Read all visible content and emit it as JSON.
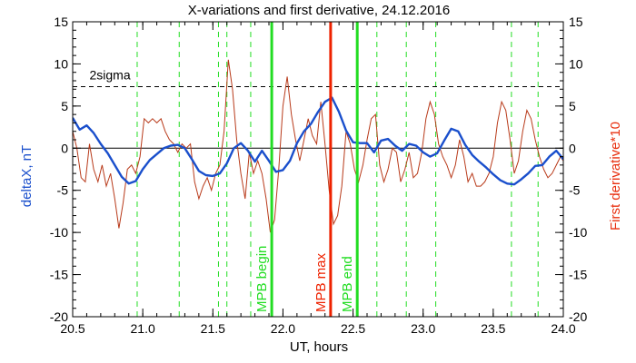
{
  "chart_data": {
    "type": "line",
    "title": "X-variations and first derivative, 24.12.2016",
    "xlabel": "UT, hours",
    "ylabel_left": "deltaX, nT",
    "ylabel_right": "First derivative*10",
    "xlim": [
      20.5,
      24.0
    ],
    "ylim_left": [
      -20,
      15
    ],
    "ylim_right": [
      -20,
      15
    ],
    "x_ticks": [
      "20.5",
      "21.0",
      "21.5",
      "22.0",
      "22.5",
      "23.0",
      "23.5",
      "24.0"
    ],
    "y_ticks": [
      "-20",
      "-15",
      "-10",
      "-5",
      "0",
      "5",
      "10",
      "15"
    ],
    "grid": false,
    "colors": {
      "deltaX": "#1a4fcc",
      "derivative": "#b83a1a",
      "mpb_marker": "#22dd22",
      "mpb_max": "#ee2200",
      "left_axis_label": "#1a4fcc",
      "right_axis_label": "#e83010"
    },
    "sigma_level": 7.3,
    "sigma_label": "2sigma",
    "dashed_verticals": [
      20.96,
      21.26,
      21.54,
      21.6,
      21.77,
      22.67,
      22.88,
      23.09,
      23.63,
      23.82
    ],
    "markers": [
      {
        "x": 21.92,
        "label": "MPB begin",
        "color": "#22dd22"
      },
      {
        "x": 22.34,
        "label": "MPB max",
        "color": "#ee2200"
      },
      {
        "x": 22.53,
        "label": "MPB end",
        "color": "#22dd22"
      }
    ],
    "series": [
      {
        "name": "deltaX",
        "axis": "left",
        "x": [
          20.5,
          20.55,
          20.6,
          20.65,
          20.7,
          20.75,
          20.8,
          20.85,
          20.9,
          20.95,
          21.0,
          21.05,
          21.1,
          21.15,
          21.2,
          21.25,
          21.3,
          21.35,
          21.4,
          21.45,
          21.5,
          21.55,
          21.6,
          21.65,
          21.7,
          21.75,
          21.8,
          21.85,
          21.9,
          21.95,
          22.0,
          22.05,
          22.1,
          22.15,
          22.2,
          22.25,
          22.3,
          22.35,
          22.4,
          22.45,
          22.5,
          22.55,
          22.6,
          22.65,
          22.7,
          22.75,
          22.8,
          22.85,
          22.9,
          22.95,
          23.0,
          23.05,
          23.1,
          23.15,
          23.2,
          23.25,
          23.3,
          23.35,
          23.4,
          23.45,
          23.5,
          23.55,
          23.6,
          23.65,
          23.7,
          23.75,
          23.8,
          23.85,
          23.9,
          23.95,
          24.0
        ],
        "values": [
          3.6,
          2.2,
          2.7,
          1.8,
          0.5,
          -0.6,
          -2.0,
          -3.4,
          -4.2,
          -3.9,
          -2.5,
          -1.4,
          -0.7,
          0.0,
          0.3,
          0.4,
          0.0,
          -1.3,
          -2.7,
          -3.2,
          -3.3,
          -3.0,
          -1.8,
          0.0,
          0.6,
          -0.3,
          -1.6,
          -0.3,
          -1.5,
          -2.8,
          -2.6,
          -1.5,
          0.6,
          2.0,
          2.9,
          4.3,
          5.5,
          6.0,
          4.3,
          2.1,
          0.7,
          0.6,
          0.6,
          -0.5,
          0.9,
          1.1,
          0.3,
          -0.3,
          0.5,
          0.3,
          -0.5,
          -1.0,
          -0.6,
          0.9,
          2.3,
          2.0,
          0.4,
          -0.8,
          -1.6,
          -2.3,
          -3.1,
          -3.8,
          -4.2,
          -4.3,
          -3.7,
          -3.0,
          -2.1,
          -2.0,
          -1.0,
          -0.3,
          -1.3
        ]
      },
      {
        "name": "derivative*10",
        "axis": "right",
        "x": [
          20.5,
          20.53,
          20.56,
          20.59,
          20.62,
          20.65,
          20.68,
          20.71,
          20.74,
          20.77,
          20.8,
          20.83,
          20.86,
          20.89,
          20.92,
          20.95,
          20.98,
          21.01,
          21.04,
          21.07,
          21.1,
          21.13,
          21.16,
          21.19,
          21.22,
          21.25,
          21.28,
          21.31,
          21.34,
          21.37,
          21.4,
          21.43,
          21.46,
          21.49,
          21.52,
          21.55,
          21.58,
          21.61,
          21.64,
          21.67,
          21.7,
          21.73,
          21.76,
          21.79,
          21.82,
          21.85,
          21.88,
          21.91,
          21.94,
          21.97,
          22.0,
          22.03,
          22.06,
          22.09,
          22.12,
          22.15,
          22.18,
          22.21,
          22.24,
          22.27,
          22.3,
          22.33,
          22.36,
          22.39,
          22.42,
          22.45,
          22.48,
          22.51,
          22.54,
          22.57,
          22.6,
          22.63,
          22.66,
          22.69,
          22.72,
          22.75,
          22.78,
          22.81,
          22.84,
          22.87,
          22.9,
          22.93,
          22.96,
          22.99,
          23.02,
          23.05,
          23.08,
          23.11,
          23.14,
          23.17,
          23.2,
          23.23,
          23.26,
          23.29,
          23.32,
          23.35,
          23.38,
          23.41,
          23.44,
          23.47,
          23.5,
          23.53,
          23.56,
          23.59,
          23.62,
          23.65,
          23.68,
          23.71,
          23.74,
          23.77,
          23.8,
          23.83,
          23.86,
          23.89,
          23.92,
          23.95,
          23.98,
          24.0
        ],
        "values": [
          2.0,
          0.0,
          -3.5,
          -4.0,
          0.5,
          -2.5,
          -4.0,
          -2.0,
          -4.5,
          -3.0,
          -6.0,
          -9.5,
          -6.5,
          -2.5,
          -2.0,
          -3.0,
          -1.0,
          3.5,
          3.0,
          3.5,
          3.0,
          3.5,
          2.0,
          1.0,
          0.5,
          -0.5,
          0.5,
          0.0,
          0.5,
          -4.0,
          -6.0,
          -4.5,
          -3.5,
          -5.0,
          -3.0,
          -2.0,
          2.0,
          10.5,
          7.0,
          1.0,
          -3.0,
          -6.0,
          -0.5,
          -3.0,
          -1.5,
          -3.0,
          -6.0,
          -10.0,
          -8.5,
          -2.5,
          5.0,
          8.5,
          4.0,
          1.0,
          -1.5,
          1.0,
          3.5,
          1.5,
          0.5,
          5.5,
          0.5,
          -5.0,
          -9.0,
          -8.0,
          -4.5,
          2.0,
          0.5,
          -2.5,
          -4.0,
          -2.0,
          1.0,
          3.5,
          4.0,
          -2.0,
          -4.0,
          -2.5,
          0.0,
          -0.5,
          -4.0,
          -2.5,
          -0.5,
          -3.5,
          -3.0,
          -0.5,
          3.5,
          5.5,
          4.0,
          0.5,
          -1.0,
          -2.0,
          -3.5,
          -2.0,
          1.0,
          -1.0,
          -4.0,
          -3.0,
          -4.5,
          -4.5,
          -4.0,
          -3.0,
          -1.0,
          3.0,
          5.5,
          4.5,
          1.0,
          -3.0,
          -1.5,
          2.0,
          4.5,
          3.5,
          1.0,
          -1.0,
          -2.5,
          -3.5,
          -3.0,
          -2.0,
          -1.0,
          -1.5
        ]
      }
    ]
  }
}
